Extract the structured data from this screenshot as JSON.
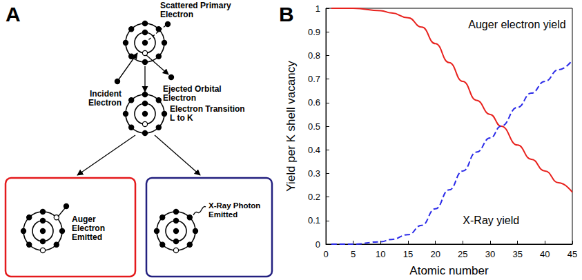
{
  "panel_labels": [
    "A",
    "B"
  ],
  "diagram": {
    "top_atom": {
      "scattered": [
        "Scattered Primary",
        "Electron"
      ],
      "incident": [
        "Incident",
        "Electron"
      ],
      "ejected": [
        "Ejected Orbital",
        "Electron"
      ]
    },
    "transition": [
      "Electron Transition",
      "L to K"
    ],
    "outcomes": [
      {
        "color": "#e41a1c",
        "label": [
          "Auger",
          "Electron",
          "Emitted"
        ]
      },
      {
        "color": "#23207f",
        "label": [
          "X-Ray Photon",
          "Emitted"
        ]
      }
    ]
  },
  "chart_data": {
    "type": "line",
    "x_label": "Atomic number",
    "y_label": "Yield per K shell vacancy",
    "x": [
      1,
      5,
      10,
      12,
      15,
      17.5,
      20,
      22.5,
      25,
      27.5,
      30,
      32,
      35,
      37.5,
      40,
      42.5,
      45
    ],
    "series": [
      {
        "color": "#e8211d",
        "line_style": "solid",
        "values": [
          1.0,
          1.0,
          0.99,
          0.98,
          0.96,
          0.92,
          0.85,
          0.77,
          0.69,
          0.61,
          0.55,
          0.5,
          0.42,
          0.36,
          0.31,
          0.26,
          0.22
        ]
      },
      {
        "color": "#2a2ae8",
        "line_style": "dashed",
        "values": [
          0.0,
          0.0,
          0.01,
          0.02,
          0.04,
          0.08,
          0.15,
          0.23,
          0.31,
          0.39,
          0.45,
          0.5,
          0.58,
          0.64,
          0.69,
          0.74,
          0.78
        ]
      }
    ],
    "annotations": [
      {
        "text": "Auger electron yield",
        "x": 26,
        "y": 0.93
      },
      {
        "text": "X-Ray yield",
        "x": 25,
        "y": 0.1
      }
    ],
    "xlim": [
      0,
      45
    ],
    "xticks": [
      0,
      5,
      10,
      15,
      20,
      25,
      30,
      35,
      40,
      45
    ],
    "ylim": [
      0,
      1
    ],
    "yticks": [
      0,
      0.1,
      0.2,
      0.3,
      0.4,
      0.5,
      0.6,
      0.7,
      0.8,
      0.9,
      1
    ],
    "grid": false
  }
}
